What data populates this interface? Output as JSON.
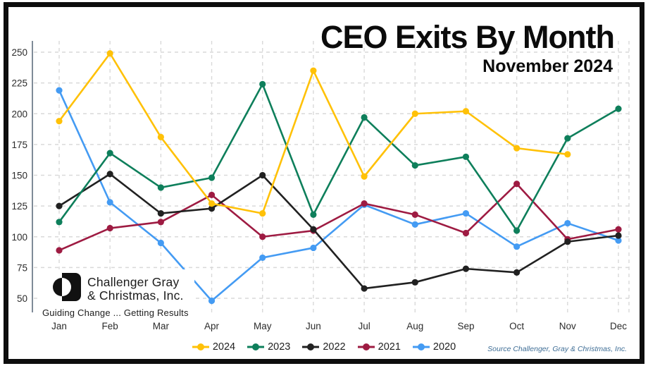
{
  "header": {
    "title": "CEO Exits By Month",
    "subtitle": "November 2024"
  },
  "chart_data": {
    "type": "line",
    "title": "CEO Exits By Month",
    "subtitle": "November 2024",
    "categories": [
      "Jan",
      "Feb",
      "Mar",
      "Apr",
      "May",
      "Jun",
      "Jul",
      "Aug",
      "Sep",
      "Oct",
      "Nov",
      "Dec"
    ],
    "y_ticks": [
      50,
      75,
      100,
      125,
      150,
      175,
      200,
      225,
      250
    ],
    "ylim": [
      50,
      250
    ],
    "grid": true,
    "legend_position": "bottom",
    "series": [
      {
        "name": "2024",
        "color": "#FFC107",
        "values": [
          194,
          249,
          181,
          127,
          119,
          235,
          149,
          200,
          202,
          172,
          167,
          null
        ]
      },
      {
        "name": "2023",
        "color": "#0E7F5B",
        "values": [
          112,
          168,
          140,
          148,
          224,
          118,
          197,
          158,
          165,
          105,
          180,
          204
        ]
      },
      {
        "name": "2022",
        "color": "#212121",
        "values": [
          125,
          151,
          119,
          123,
          150,
          106,
          58,
          63,
          74,
          71,
          96,
          101
        ]
      },
      {
        "name": "2021",
        "color": "#9E1B42",
        "values": [
          89,
          107,
          112,
          134,
          100,
          105,
          127,
          118,
          103,
          143,
          98,
          106
        ]
      },
      {
        "name": "2020",
        "color": "#449BF3",
        "values": [
          219,
          128,
          95,
          48,
          83,
          91,
          126,
          110,
          119,
          92,
          111,
          97
        ]
      }
    ],
    "colors": {
      "grid": "#d9d9d9",
      "axis": "#5f6e7e",
      "tick_text": "#2b2b2b"
    }
  },
  "logo": {
    "line1": "Challenger Gray",
    "line2": "& Christmas, Inc.",
    "tagline": "Guiding Change ... Getting Results"
  },
  "source": {
    "text": "Source Challenger, Gray & Christmas, Inc."
  }
}
